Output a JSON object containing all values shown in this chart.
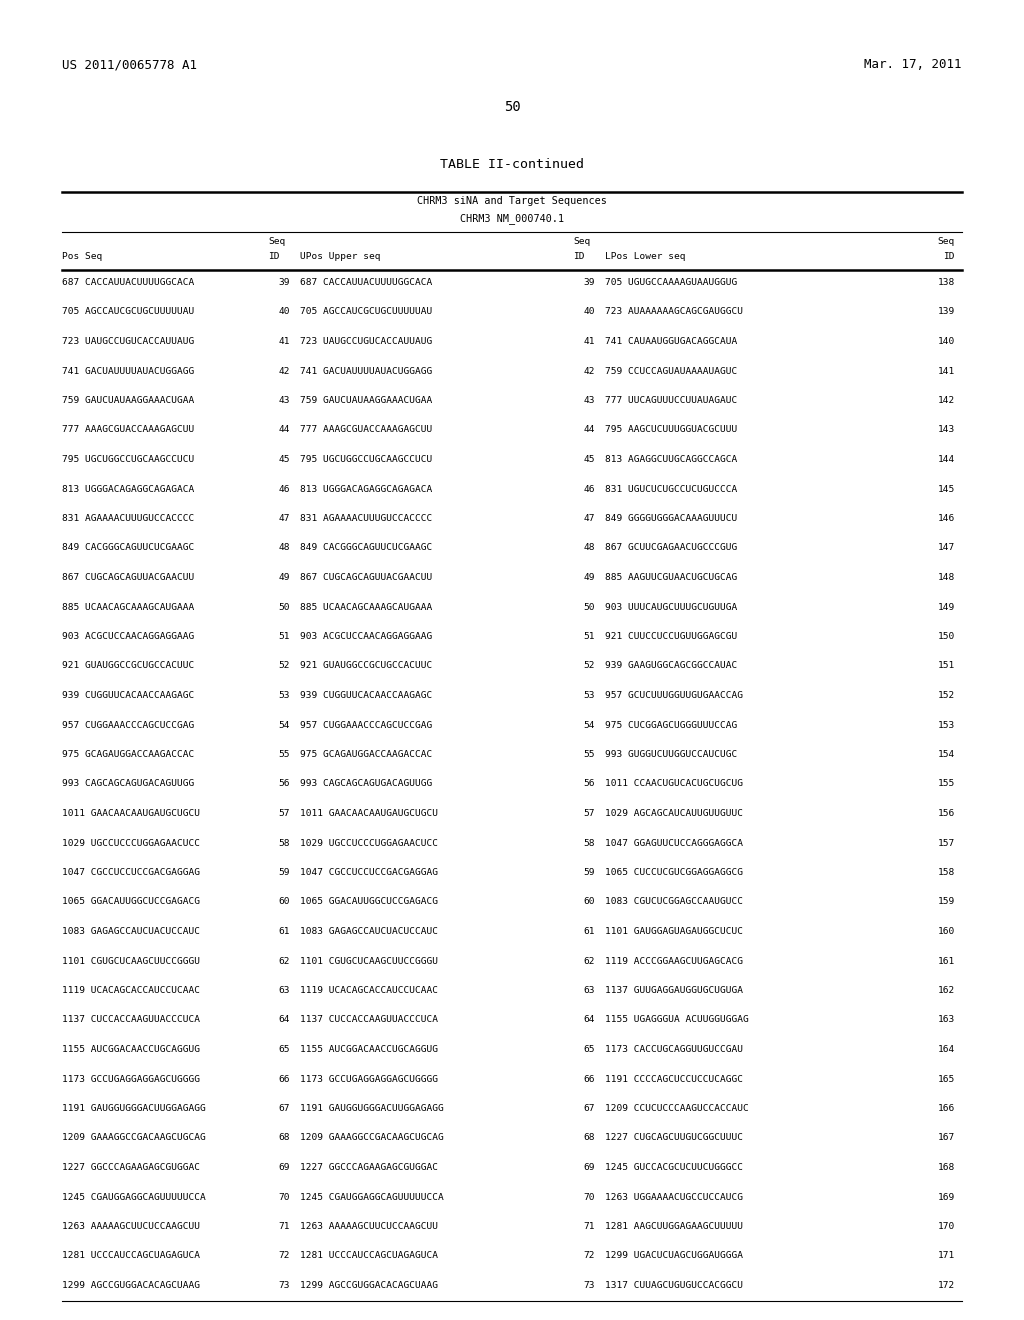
{
  "header_left": "US 2011/0065778 A1",
  "header_right": "Mar. 17, 2011",
  "page_number": "50",
  "table_title": "TABLE II-continued",
  "subtitle1": "CHRM3 siNA and Target Sequences",
  "subtitle2": "CHRM3 NM_000740.1",
  "rows": [
    [
      "687 CACCAUUACUUUUGGCACA",
      "39",
      "687 CACCAUUACUUUUGGCACA",
      "39",
      "705 UGUGCCAAAAGUAAUGGUG",
      "138"
    ],
    [
      "705 AGCCAUCGCUGCUUUUUAU",
      "40",
      "705 AGCCAUCGCUGCUUUUUAU",
      "40",
      "723 AUAAAAAAGCAGCGAUGGCU",
      "139"
    ],
    [
      "723 UAUGCCUGUCACCAUUAUG",
      "41",
      "723 UAUGCCUGUCACCAUUAUG",
      "41",
      "741 CAUAAUGGUGACAGGCAUA",
      "140"
    ],
    [
      "741 GACUAUUUUAUACUGGAGG",
      "42",
      "741 GACUAUUUUAUACUGGAGG",
      "42",
      "759 CCUCCAGUAUAAAAUAGUC",
      "141"
    ],
    [
      "759 GAUCUAUAAGGAAACUGAA",
      "43",
      "759 GAUCUAUAAGGAAACUGAA",
      "43",
      "777 UUCAGUUUCCUUAUAGAUC",
      "142"
    ],
    [
      "777 AAAGCGUACCAAAGAGCUU",
      "44",
      "777 AAAGCGUACCAAAGAGCUU",
      "44",
      "795 AAGCUCUUUGGUACGCUUU",
      "143"
    ],
    [
      "795 UGCUGGCCUGCAAGCCUCU",
      "45",
      "795 UGCUGGCCUGCAAGCCUCU",
      "45",
      "813 AGAGGCUUGCAGGCCAGCA",
      "144"
    ],
    [
      "813 UGGGACAGAGGCAGAGACA",
      "46",
      "813 UGGGACAGAGGCAGAGACA",
      "46",
      "831 UGUCUCUGCCUCUGUCCCA",
      "145"
    ],
    [
      "831 AGAAAACUUUGUCCACCCC",
      "47",
      "831 AGAAAACUUUGUCCACCCC",
      "47",
      "849 GGGGUGGGACAAAGUUUCU",
      "146"
    ],
    [
      "849 CACGGGCAGUUCUCGAAGC",
      "48",
      "849 CACGGGCAGUUCUCGAAGC",
      "48",
      "867 GCUUCGAGAACUGCCCGUG",
      "147"
    ],
    [
      "867 CUGCAGCAGUUACGAACUU",
      "49",
      "867 CUGCAGCAGUUACGAACUU",
      "49",
      "885 AAGUUCGUAACUGCUGCAG",
      "148"
    ],
    [
      "885 UCAACAGCAAAGCAUGAAA",
      "50",
      "885 UCAACAGCAAAGCAUGAAA",
      "50",
      "903 UUUCAUGCUUUGCUGUUGA",
      "149"
    ],
    [
      "903 ACGCUCCAACAGGAGGAAG",
      "51",
      "903 ACGCUCCAACAGGAGGAAG",
      "51",
      "921 CUUCCUCCUGUUGGAGCGU",
      "150"
    ],
    [
      "921 GUAUGGCCGCUGCCACUUC",
      "52",
      "921 GUAUGGCCGCUGCCACUUC",
      "52",
      "939 GAAGUGGCAGCGGCCAUAC",
      "151"
    ],
    [
      "939 CUGGUUCACAACCAAGAGC",
      "53",
      "939 CUGGUUCACAACCAAGAGC",
      "53",
      "957 GCUCUUUGGUUGUGAACCAG",
      "152"
    ],
    [
      "957 CUGGAAACCCAGCUCCGAG",
      "54",
      "957 CUGGAAACCCAGCUCCGAG",
      "54",
      "975 CUCGGAGCUGGGUUUCCAG",
      "153"
    ],
    [
      "975 GCAGAUGGACCAAGACCAC",
      "55",
      "975 GCAGAUGGACCAAGACCAC",
      "55",
      "993 GUGGUCUUGGUCCAUCUGC",
      "154"
    ],
    [
      "993 CAGCAGCAGUGACAGUUGG",
      "56",
      "993 CAGCAGCAGUGACAGUUGG",
      "56",
      "1011 CCAACUGUCACUGCUGCUG",
      "155"
    ],
    [
      "1011 GAACAACAAUGAUGCUGCU",
      "57",
      "1011 GAACAACAAUGAUGCUGCU",
      "57",
      "1029 AGCAGCAUCAUUGUUGUUC",
      "156"
    ],
    [
      "1029 UGCCUCCCUGGAGAACUCC",
      "58",
      "1029 UGCCUCCCUGGAGAACUCC",
      "58",
      "1047 GGAGUUCUCCAGGGAGGCA",
      "157"
    ],
    [
      "1047 CGCCUCCUCCGACGAGGAG",
      "59",
      "1047 CGCCUCCUCCGACGAGGAG",
      "59",
      "1065 CUCCUCGUCGGAGGAGGCG",
      "158"
    ],
    [
      "1065 GGACAUUGGCUCCGAGACG",
      "60",
      "1065 GGACAUUGGCUCCGAGACG",
      "60",
      "1083 CGUCUCGGAGCCAAUGUCC",
      "159"
    ],
    [
      "1083 GAGAGCCAUCUACUCCAUC",
      "61",
      "1083 GAGAGCCAUCUACUCCAUC",
      "61",
      "1101 GAUGGAGUAGAUGGCUCUC",
      "160"
    ],
    [
      "1101 CGUGCUCAAGCUUCCGGGU",
      "62",
      "1101 CGUGCUCAAGCUUCCGGGU",
      "62",
      "1119 ACCCGGAAGCUUGAGCACG",
      "161"
    ],
    [
      "1119 UCACAGCACCAUCCUCAAC",
      "63",
      "1119 UCACAGCACCAUCCUCAAC",
      "63",
      "1137 GUUGAGGAUGGUGCUGUGA",
      "162"
    ],
    [
      "1137 CUCCACCAAGUUACCCUCA",
      "64",
      "1137 CUCCACCAAGUUACCCUCA",
      "64",
      "1155 UGAGGGUA ACUUGGUGGAG",
      "163"
    ],
    [
      "1155 AUCGGACAACCUGCAGGUG",
      "65",
      "1155 AUCGGACAACCUGCAGGUG",
      "65",
      "1173 CACCUGCAGGUUGUCCGAU",
      "164"
    ],
    [
      "1173 GCCUGAGGAGGAGCUGGGG",
      "66",
      "1173 GCCUGAGGAGGAGCUGGGG",
      "66",
      "1191 CCCCAGCUCCUCCUCAGGC",
      "165"
    ],
    [
      "1191 GAUGGUGGGACUUGGAGAGG",
      "67",
      "1191 GAUGGUGGGACUUGGAGAGG",
      "67",
      "1209 CCUCUCCCAAGUCCACCAUC",
      "166"
    ],
    [
      "1209 GAAAGGCCGACAAGCUGCAG",
      "68",
      "1209 GAAAGGCCGACAAGCUGCAG",
      "68",
      "1227 CUGCAGCUUGUCGGCUUUC",
      "167"
    ],
    [
      "1227 GGCCCAGAAGAGCGUGGAC",
      "69",
      "1227 GGCCCAGAAGAGCGUGGAC",
      "69",
      "1245 GUCCACGCUCUUCUGGGCC",
      "168"
    ],
    [
      "1245 CGAUGGAGGCAGUUUUUCCA",
      "70",
      "1245 CGAUGGAGGCAGUUUUUCCA",
      "70",
      "1263 UGGAAAACUGCCUCCAUCG",
      "169"
    ],
    [
      "1263 AAAAAGCUUCUCCAAGCUU",
      "71",
      "1263 AAAAAGCUUCUCCAAGCUU",
      "71",
      "1281 AAGCUUGGAGAAGCUUUUU",
      "170"
    ],
    [
      "1281 UCCCAUCCAGCUAGAGUCA",
      "72",
      "1281 UCCCAUCCAGCUAGAGUCA",
      "72",
      "1299 UGACUCUAGCUGGAUGGGA",
      "171"
    ],
    [
      "1299 AGCCGUGGACACAGCUAAG",
      "73",
      "1299 AGCCGUGGACACAGCUAAG",
      "73",
      "1317 CUUAGCUGUGUCCACGGCU",
      "172"
    ]
  ],
  "background_color": "#ffffff",
  "text_color": "#000000",
  "font_size": 6.8,
  "header_font_size": 9.0,
  "title_font_size": 9.5
}
